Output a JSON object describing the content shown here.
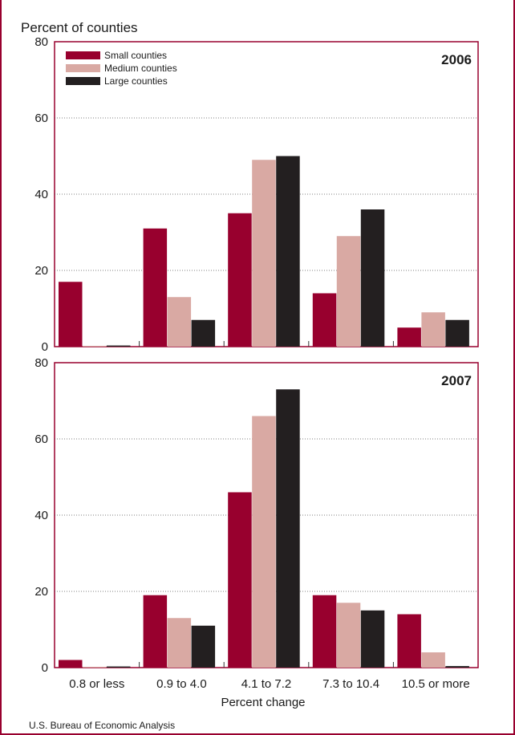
{
  "colors": {
    "frame": "#98002e",
    "small": "#98002e",
    "medium": "#d9a9a3",
    "large": "#231f20"
  },
  "ylabel": "Percent of counties",
  "xlabel": "Percent change",
  "source": "U.S. Bureau of Economic Analysis",
  "chart_data": [
    {
      "type": "bar",
      "title": "2006",
      "categories": [
        "0.8 or less",
        "0.9 to 4.0",
        "4.1 to 7.2",
        "7.3 to 10.4",
        "10.5 or more"
      ],
      "ylim": [
        0,
        80
      ],
      "yticks": [
        0,
        20,
        40,
        60,
        80
      ],
      "grid": true,
      "legend": "top-left",
      "series": [
        {
          "name": "Small counties",
          "values": [
            17,
            31,
            35,
            14,
            5
          ]
        },
        {
          "name": "Medium counties",
          "values": [
            0.2,
            13,
            49,
            29,
            9
          ]
        },
        {
          "name": "Large counties",
          "values": [
            0.3,
            7,
            50,
            36,
            7
          ]
        }
      ]
    },
    {
      "type": "bar",
      "title": "2007",
      "categories": [
        "0.8 or less",
        "0.9 to 4.0",
        "4.1 to 7.2",
        "7.3 to 10.4",
        "10.5 or more"
      ],
      "ylim": [
        0,
        80
      ],
      "yticks": [
        0,
        20,
        40,
        60,
        80
      ],
      "grid": true,
      "series": [
        {
          "name": "Small counties",
          "values": [
            2,
            19,
            46,
            19,
            14
          ]
        },
        {
          "name": "Medium counties",
          "values": [
            0.2,
            13,
            66,
            17,
            4
          ]
        },
        {
          "name": "Large counties",
          "values": [
            0.3,
            11,
            73,
            15,
            0.4
          ]
        }
      ]
    }
  ]
}
